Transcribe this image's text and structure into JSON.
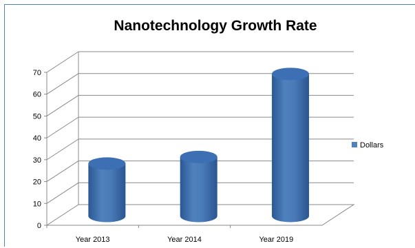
{
  "chart_data": {
    "type": "bar",
    "title": "Nanotechnology Growth Rate",
    "categories": [
      "Year 2013",
      "Year 2014",
      "Year 2019"
    ],
    "series": [
      {
        "name": "Dollars",
        "values": [
          24,
          27,
          65
        ]
      }
    ],
    "ylim": [
      0,
      70
    ],
    "yticks": [
      "0",
      "10",
      "20",
      "30",
      "40",
      "50",
      "60",
      "70"
    ],
    "grid": true,
    "legend_position": "right",
    "bar_shape": "cylinder",
    "colors": {
      "series": "#4f81bd",
      "series_dark": "#2f5b95",
      "series_top": "#3c6fb3",
      "grid": "#888888",
      "frame": "#4f81bd"
    }
  }
}
